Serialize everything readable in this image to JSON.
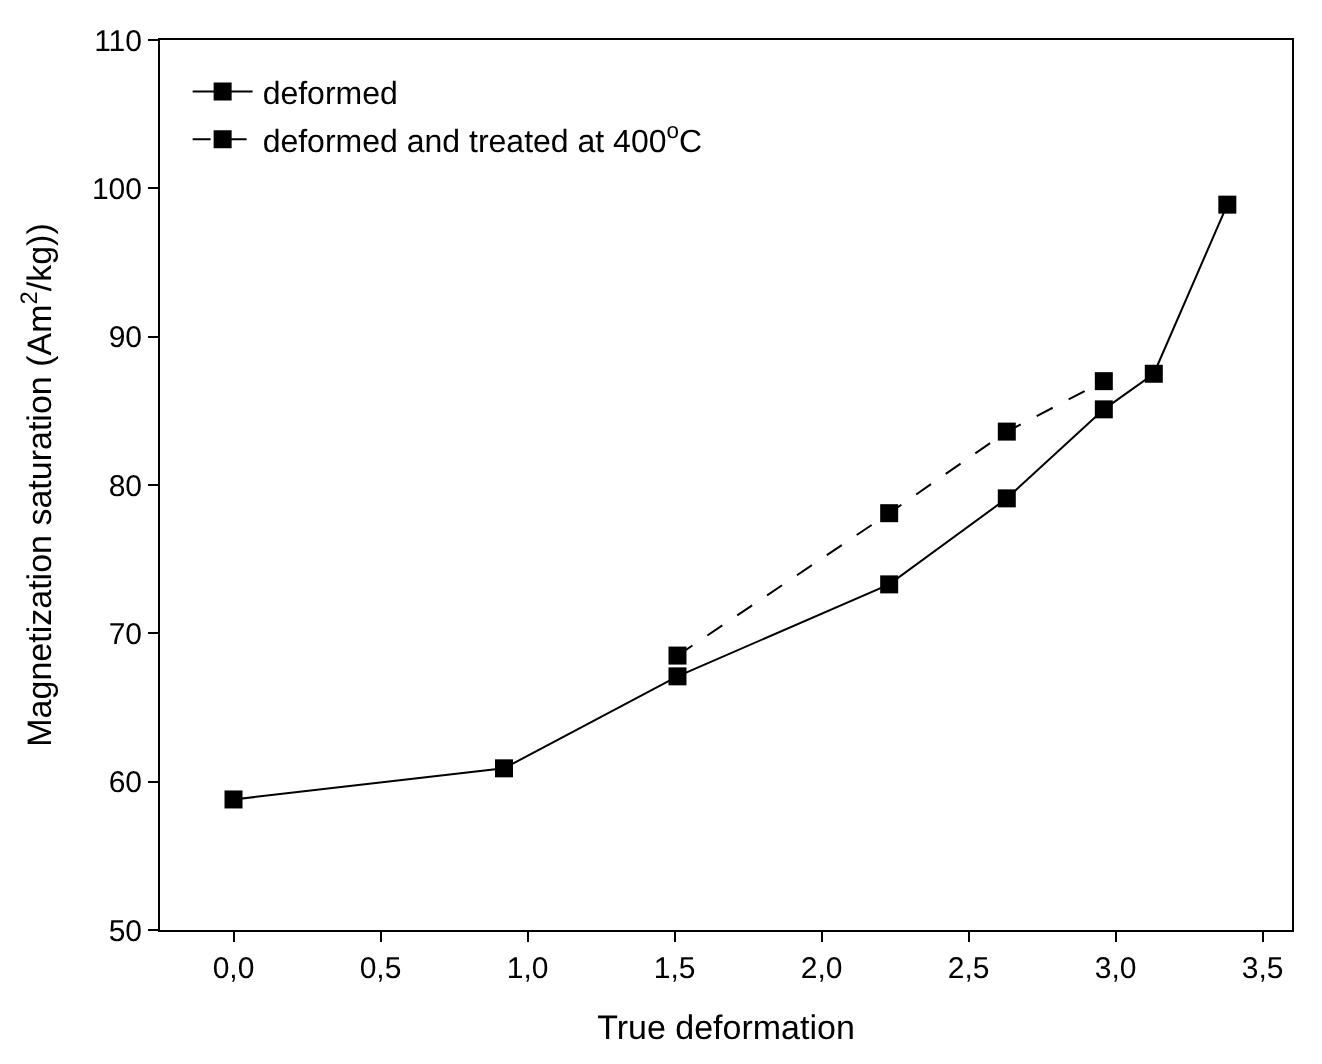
{
  "chart_data": {
    "type": "line",
    "xlabel": "True deformation",
    "ylabel": "Magnetization saturation (Am$^{2}$/kg))",
    "xlim": [
      -0.25,
      3.6
    ],
    "ylim": [
      50,
      110
    ],
    "xticks": [
      {
        "value": 0,
        "label": "0,0"
      },
      {
        "value": 0.5,
        "label": "0,5"
      },
      {
        "value": 1,
        "label": "1,0"
      },
      {
        "value": 1.5,
        "label": "1,5"
      },
      {
        "value": 2,
        "label": "2,0"
      },
      {
        "value": 2.5,
        "label": "2,5"
      },
      {
        "value": 3,
        "label": "3,0"
      },
      {
        "value": 3.5,
        "label": "3,5"
      }
    ],
    "yticks": [
      50,
      60,
      70,
      80,
      90,
      100,
      110
    ],
    "legend": "top left",
    "marker": "square",
    "series": [
      {
        "name": "deformed",
        "color": "#000000",
        "line_style": "solid",
        "x": [
          0,
          0.92,
          1.51,
          2.23,
          2.63,
          2.96,
          3.13,
          3.38
        ],
        "values": [
          58.8,
          60.9,
          67.1,
          73.3,
          79.1,
          85.1,
          87.5,
          98.9
        ]
      },
      {
        "name": "deformed and treated at 400$^{o}$C",
        "color": "#000000",
        "line_style": "dashed",
        "x": [
          1.51,
          2.23,
          2.63,
          2.96
        ],
        "values": [
          68.5,
          78.1,
          83.6,
          87.0
        ]
      }
    ]
  }
}
